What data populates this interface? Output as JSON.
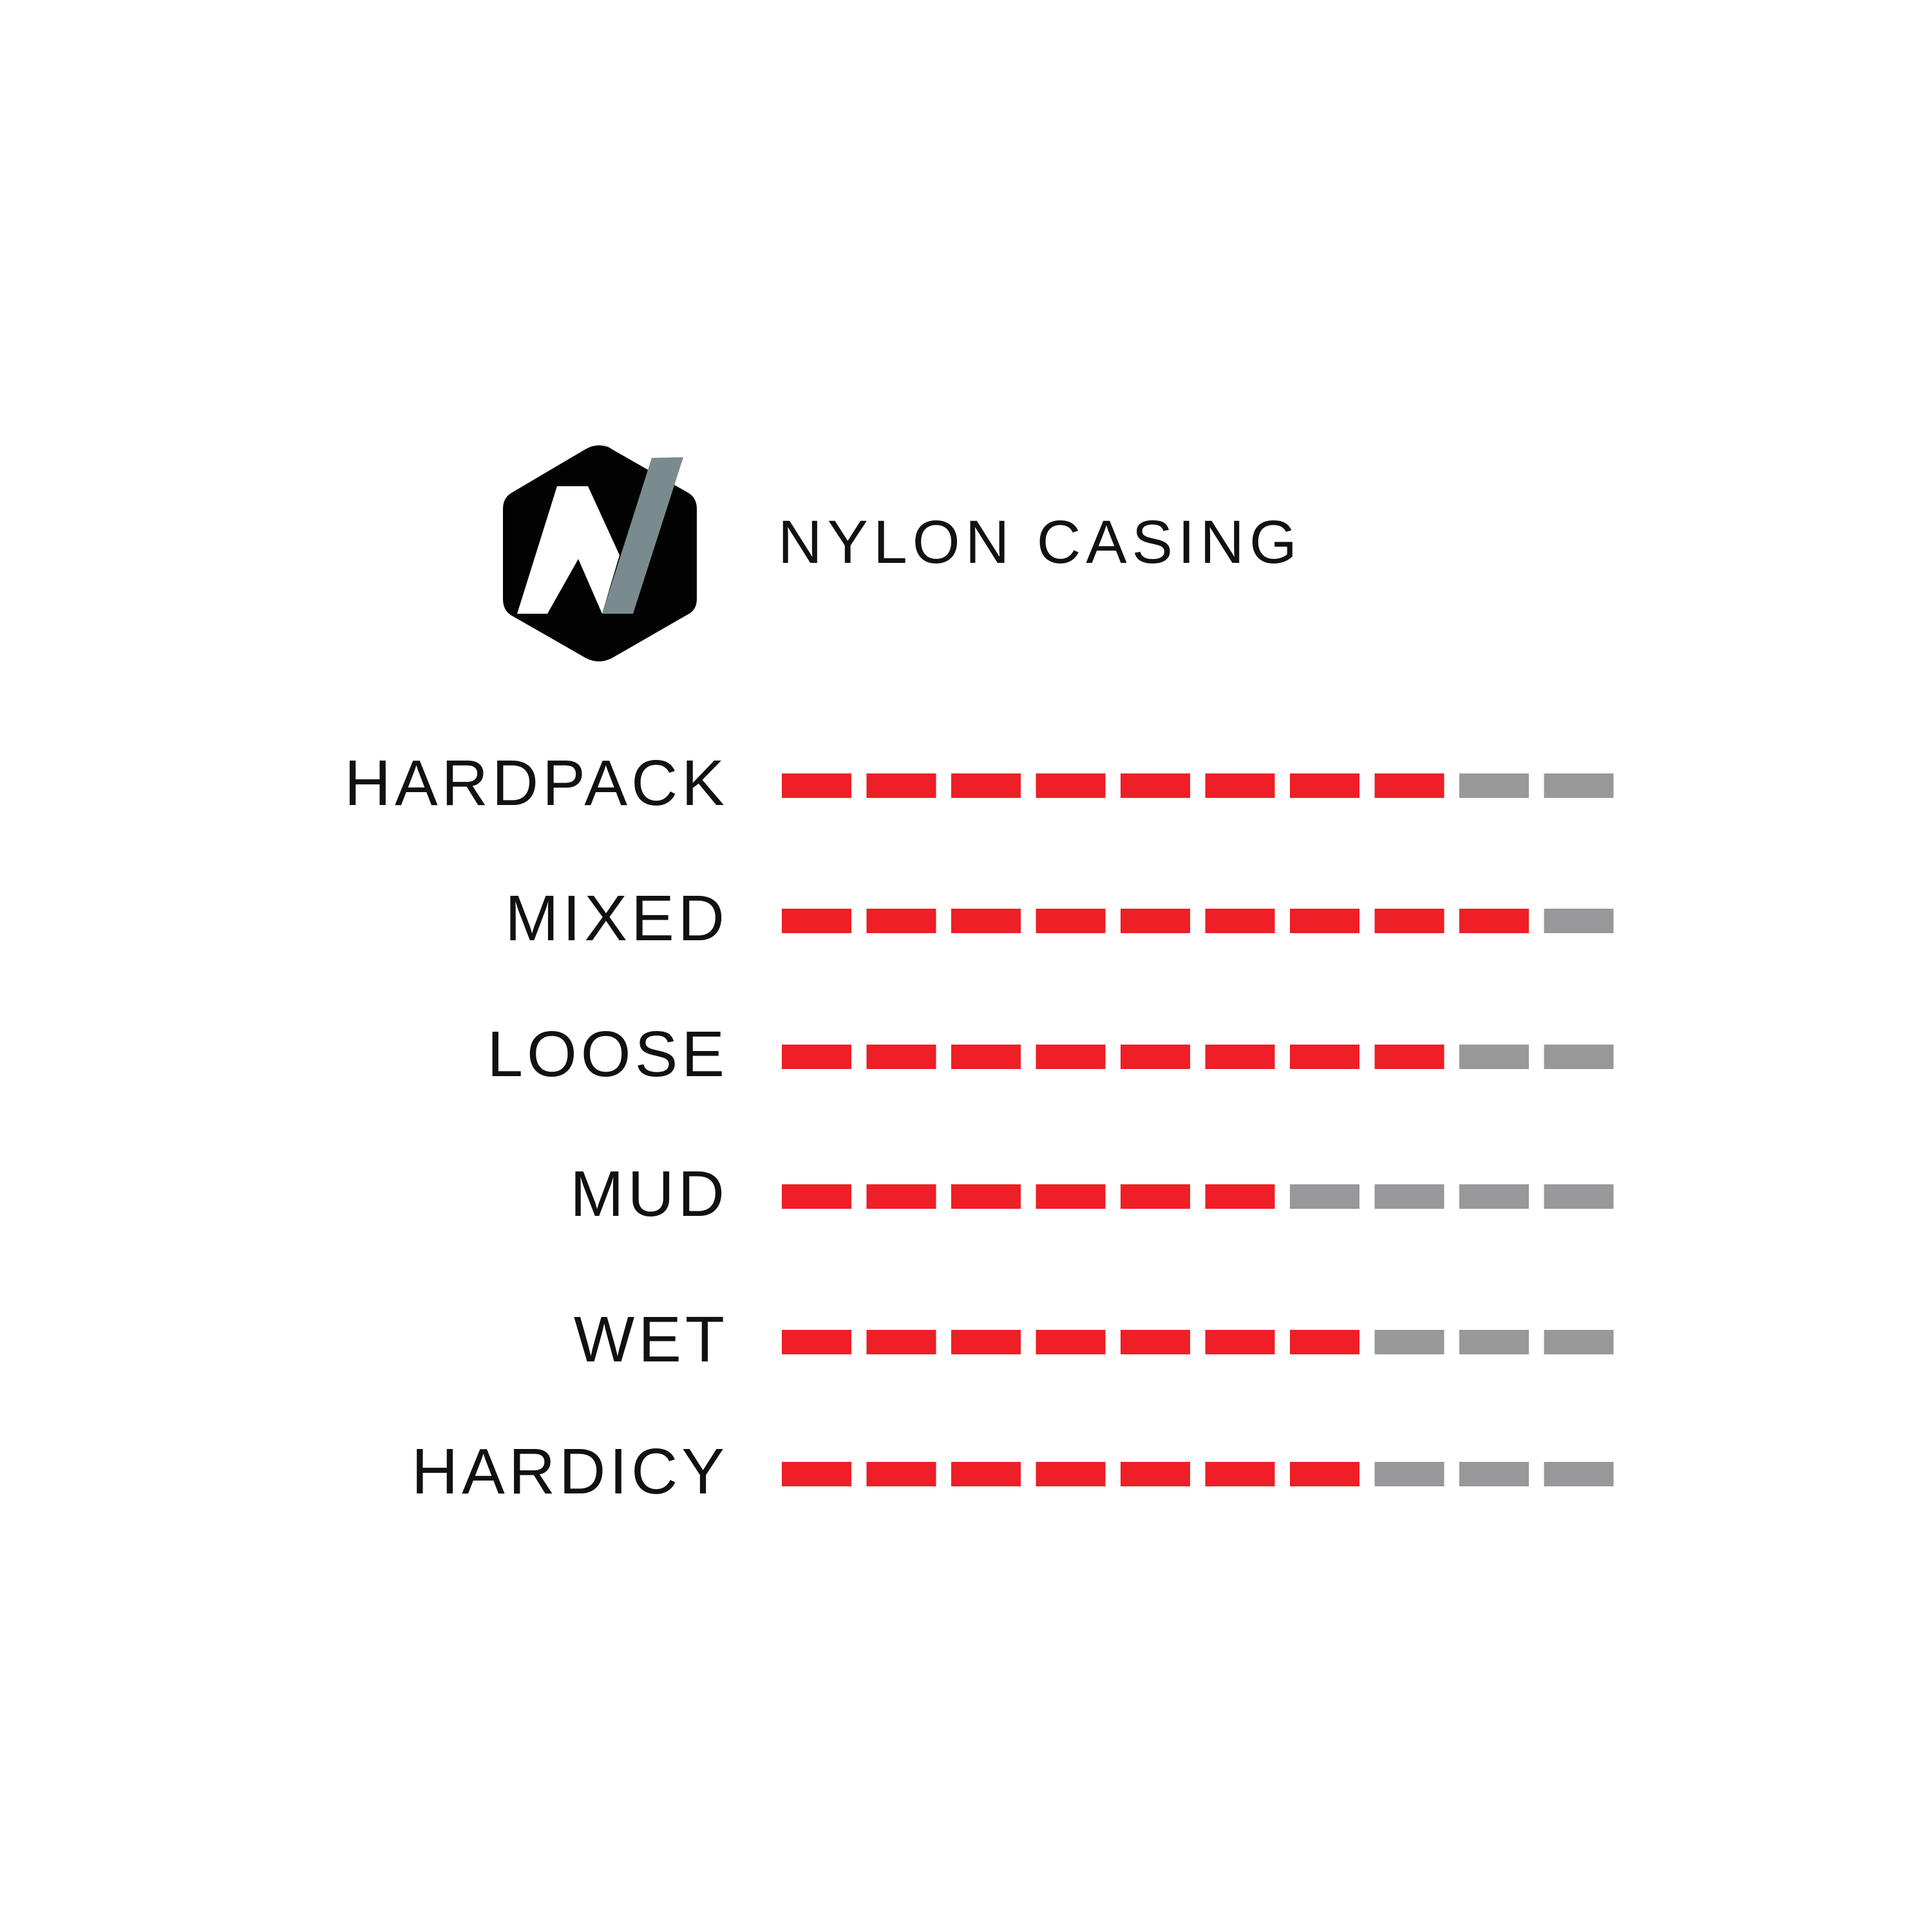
{
  "title": "NYLON CASING",
  "colors": {
    "filled": "#ee1f26",
    "empty": "#98989a",
    "logo_bg": "#030303",
    "logo_slash": "#7a8b8e"
  },
  "scale_max": 10,
  "rows": [
    {
      "label": "HARDPACK",
      "value": 8
    },
    {
      "label": "MIXED",
      "value": 9
    },
    {
      "label": "LOOSE",
      "value": 8
    },
    {
      "label": "MUD",
      "value": 6
    },
    {
      "label": "WET",
      "value": 7
    },
    {
      "label": "HARDICY",
      "value": 7
    }
  ]
}
